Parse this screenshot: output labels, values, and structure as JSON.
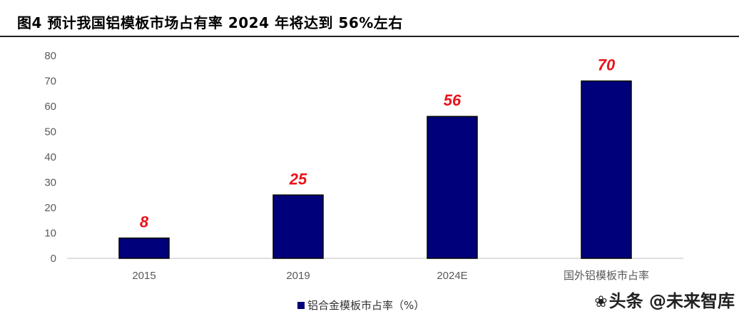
{
  "header": {
    "title": "图4  预计我国铝模板市场占有率 2024 年将达到 56%左右"
  },
  "watermark": {
    "text": "头条 @未来智库",
    "icon": "paw-icon"
  },
  "colors": {
    "bar": "#00007a",
    "label": "#e8141b",
    "axis_text": "#595959",
    "gridline": "#bfbfbf"
  },
  "chart_data": {
    "type": "bar",
    "categories": [
      "2015",
      "2019",
      "2024E",
      "国外铝模板市占率"
    ],
    "series": [
      {
        "name": "铝合金模板市占率（%）",
        "values": [
          8,
          25,
          56,
          70
        ]
      }
    ],
    "data_labels": [
      "8",
      "25",
      "56",
      "70"
    ],
    "ylim": [
      0,
      80
    ],
    "yticks": [
      0,
      10,
      20,
      30,
      40,
      50,
      60,
      70,
      80
    ],
    "grid": false,
    "legend": "bottom"
  }
}
